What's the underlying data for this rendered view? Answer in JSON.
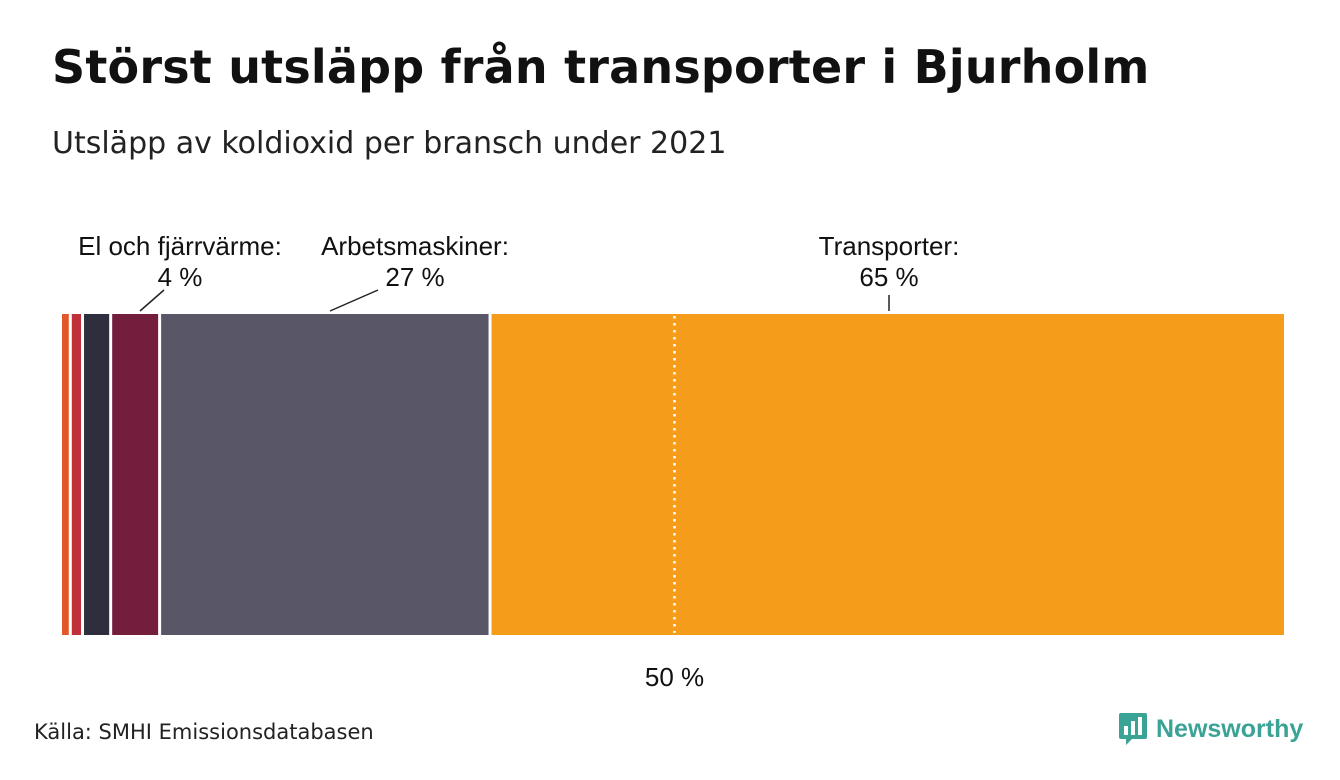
{
  "title": "Störst utsläpp från transporter i Bjurholm",
  "subtitle": "Utsläpp av koldioxid per bransch under 2021",
  "source": "Källa: SMHI Emissionsdatabasen",
  "brand": {
    "name": "Newsworthy",
    "icon": "bar-chart-speech-bubble-icon",
    "color": "#3aa395"
  },
  "chart_data": {
    "type": "bar",
    "orientation": "horizontal-stacked-100",
    "unit": "%",
    "series": [
      {
        "name": "segment-1",
        "value": 0.8,
        "color": "#e3582b",
        "labeled": false
      },
      {
        "name": "segment-2",
        "value": 1.0,
        "color": "#c0303a",
        "labeled": false
      },
      {
        "name": "segment-3",
        "value": 2.3,
        "color": "#2e2e3e",
        "labeled": false
      },
      {
        "name": "El och fjärrvärme",
        "label": "El och fjärrvärme:",
        "value_label": "4 %",
        "value": 4,
        "color": "#741e3d",
        "labeled": true
      },
      {
        "name": "Arbetsmaskiner",
        "label": "Arbetsmaskiner:",
        "value_label": "27 %",
        "value": 27,
        "color": "#595767",
        "labeled": true
      },
      {
        "name": "Transporter",
        "label": "Transporter:",
        "value_label": "65 %",
        "value": 65,
        "color": "#f59d1b",
        "labeled": true
      }
    ],
    "reference_line": {
      "value": 50,
      "label": "50 %"
    },
    "xlim": [
      0,
      100
    ]
  }
}
